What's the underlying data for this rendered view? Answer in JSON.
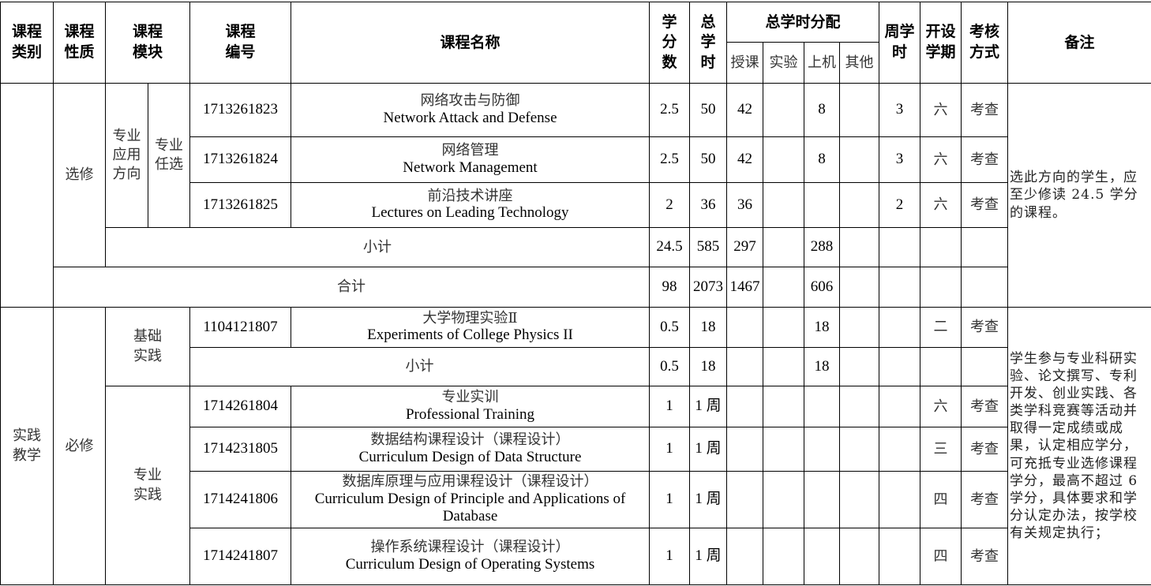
{
  "header": {
    "category": "课程类别",
    "nature": "课程性质",
    "module": "课程模块",
    "code": "课程编号",
    "name": "课程名称",
    "credits": "学分数",
    "total_hours": "总学时",
    "allocation": "总学时分配",
    "lecture": "授课",
    "experiment": "实验",
    "computer": "上机",
    "other": "其他",
    "weekly_hours": "周学时",
    "semester": "开设学期",
    "assessment": "考核方式",
    "remarks": "备注"
  },
  "elective_section": {
    "nature": "选修",
    "module_a": "专业应用方向",
    "module_b": "专业任选",
    "remark": "选此方向的学生，应至少修读 24.5 学分的课程。",
    "rows": [
      {
        "code": "1713261823",
        "name_zh": "网络攻击与防御",
        "name_en": "Network Attack and Defense",
        "credits": "2.5",
        "total": "50",
        "lecture": "42",
        "experiment": "",
        "computer": "8",
        "other": "",
        "weekly": "3",
        "semester": "六",
        "assessment": "考查"
      },
      {
        "code": "1713261824",
        "name_zh": "网络管理",
        "name_en": "Network Management",
        "credits": "2.5",
        "total": "50",
        "lecture": "42",
        "experiment": "",
        "computer": "8",
        "other": "",
        "weekly": "3",
        "semester": "六",
        "assessment": "考查"
      },
      {
        "code": "1713261825",
        "name_zh": "前沿技术讲座",
        "name_en": "Lectures on Leading Technology",
        "credits": "2",
        "total": "36",
        "lecture": "36",
        "experiment": "",
        "computer": "",
        "other": "",
        "weekly": "2",
        "semester": "六",
        "assessment": "考查"
      }
    ],
    "subtotal": {
      "label": "小计",
      "credits": "24.5",
      "total": "585",
      "lecture": "297",
      "computer": "288"
    },
    "grand_total": {
      "label": "合计",
      "credits": "98",
      "total": "2073",
      "lecture": "1467",
      "computer": "606"
    }
  },
  "practice_section": {
    "category": "实践教学",
    "nature": "必修",
    "basic_module": "基础实践",
    "professional_module": "专业实践",
    "remark": "学生参与专业科研实验、论文撰写、专利开发、创业实践、各类学科竞赛等活动并取得一定成绩或成果，认定相应学分，可充抵专业选修课程学分，最高不超过 6 学分，具体要求和学分认定办法，按学校有关规定执行；",
    "basic_rows": [
      {
        "code": "1104121807",
        "name_zh": "大学物理实验Ⅱ",
        "name_en": "Experiments of College Physics II",
        "credits": "0.5",
        "total": "18",
        "computer": "18",
        "semester": "二",
        "assessment": "考查"
      }
    ],
    "basic_subtotal": {
      "label": "小计",
      "credits": "0.5",
      "total": "18",
      "computer": "18"
    },
    "professional_rows": [
      {
        "code": "1714261804",
        "name_zh": "专业实训",
        "name_en": "Professional Training",
        "credits": "1",
        "total": "1 周",
        "semester": "六",
        "assessment": "考查"
      },
      {
        "code": "1714231805",
        "name_zh": "数据结构课程设计（课程设计）",
        "name_en": "Curriculum Design of Data Structure",
        "credits": "1",
        "total": "1 周",
        "semester": "三",
        "assessment": "考查"
      },
      {
        "code": "1714241806",
        "name_zh": "数据库原理与应用课程设计（课程设计）",
        "name_en": "Curriculum Design of Principle and Applications of Database",
        "credits": "1",
        "total": "1 周",
        "semester": "四",
        "assessment": "考查"
      },
      {
        "code": "1714241807",
        "name_zh": "操作系统课程设计（课程设计）",
        "name_en": "Curriculum Design of Operating Systems",
        "credits": "1",
        "total": "1 周",
        "semester": "四",
        "assessment": "考查"
      }
    ]
  }
}
